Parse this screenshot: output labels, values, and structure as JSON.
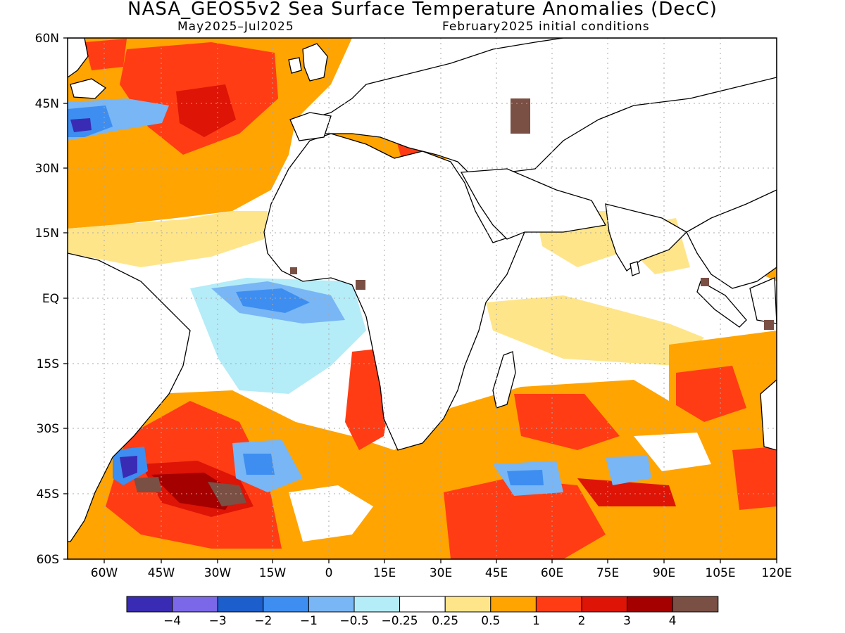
{
  "header": {
    "title": "NASA_GEOS5v2 Sea Surface Temperature Anomalies (DecC)",
    "period": "May2025–Jul2025",
    "init": "February2025 initial conditions"
  },
  "axes": {
    "lat_labels": [
      "60N",
      "45N",
      "30N",
      "15N",
      "EQ",
      "15S",
      "30S",
      "45S",
      "60S"
    ],
    "lon_labels": [
      "60W",
      "45W",
      "30W",
      "15W",
      "0",
      "15E",
      "30E",
      "45E",
      "60E",
      "75E",
      "90E",
      "105E",
      "120E"
    ]
  },
  "colorbar": {
    "colors": [
      "#3a2bb5",
      "#7b68e8",
      "#1c5fcc",
      "#3d8ef0",
      "#78b6f5",
      "#b4ecf8",
      "#ffffff",
      "#ffe58a",
      "#ffa400",
      "#ff3c14",
      "#dd1406",
      "#a50000",
      "#7a4f44"
    ],
    "labels": [
      "−4",
      "−3",
      "−2",
      "−1",
      "−0.5",
      "−0.25",
      "0.25",
      "0.5",
      "1",
      "2",
      "3",
      "4"
    ]
  },
  "map": {
    "land_color": "#ffffff",
    "coast_color": "#000000",
    "grid": "dotted"
  }
}
